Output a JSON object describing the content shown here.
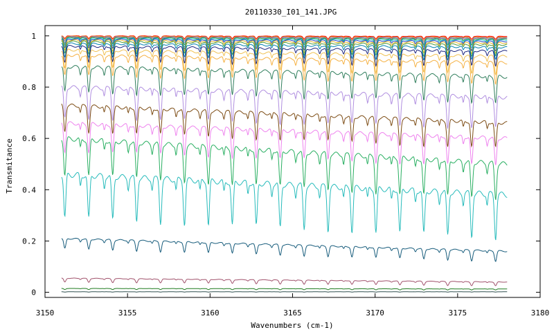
{
  "chart_data": {
    "type": "line",
    "title": "20110330_I01_141.JPG",
    "xlabel": "Wavenumbers (cm-1)",
    "ylabel": "Transmitance",
    "xlim": [
      3150,
      3180
    ],
    "ylim": [
      -0.02,
      1.04
    ],
    "x_ticks": [
      3150,
      3155,
      3160,
      3165,
      3170,
      3175,
      3180
    ],
    "y_ticks": [
      0,
      0.2,
      0.4,
      0.6,
      0.8,
      1
    ],
    "x_tick_labels": [
      "3150",
      "3155",
      "3160",
      "3165",
      "3170",
      "3175",
      "3180"
    ],
    "y_tick_labels": [
      "0",
      "0.2",
      "0.4",
      "0.6",
      "0.8",
      "1"
    ],
    "grid": false,
    "legend": "none",
    "x_range_of_data": [
      3151,
      3178
    ],
    "absorption_line_spacing": 1.45,
    "series": [
      {
        "color": "#ff0000",
        "baseline_start": 1.0,
        "baseline_end": 0.998,
        "depth": 0.01
      },
      {
        "color": "#ff7f0e",
        "baseline_start": 0.999,
        "baseline_end": 0.995,
        "depth": 0.012
      },
      {
        "color": "#888888",
        "baseline_start": 0.997,
        "baseline_end": 0.993,
        "depth": 0.015
      },
      {
        "color": "#9467bd",
        "baseline_start": 0.995,
        "baseline_end": 0.99,
        "depth": 0.02
      },
      {
        "color": "#2ca02c",
        "baseline_start": 0.993,
        "baseline_end": 0.987,
        "depth": 0.025
      },
      {
        "color": "#17becf",
        "baseline_start": 0.99,
        "baseline_end": 0.983,
        "depth": 0.03
      },
      {
        "color": "#1f3fbf",
        "baseline_start": 0.987,
        "baseline_end": 0.978,
        "depth": 0.035
      },
      {
        "color": "#e6b422",
        "baseline_start": 0.983,
        "baseline_end": 0.972,
        "depth": 0.04
      },
      {
        "color": "#4a9a3a",
        "baseline_start": 0.978,
        "baseline_end": 0.965,
        "depth": 0.045
      },
      {
        "color": "#0080b0",
        "baseline_start": 0.97,
        "baseline_end": 0.955,
        "depth": 0.05
      },
      {
        "color": "#1a237e",
        "baseline_start": 0.96,
        "baseline_end": 0.94,
        "depth": 0.06
      },
      {
        "color": "#f0c050",
        "baseline_start": 0.945,
        "baseline_end": 0.92,
        "depth": 0.07
      },
      {
        "color": "#f5b041",
        "baseline_start": 0.925,
        "baseline_end": 0.895,
        "depth": 0.08
      },
      {
        "color": "#2e7d5b",
        "baseline_start": 0.88,
        "baseline_end": 0.84,
        "depth": 0.1
      },
      {
        "color": "#b08ee0",
        "baseline_start": 0.8,
        "baseline_end": 0.76,
        "depth": 0.12
      },
      {
        "color": "#7b4a12",
        "baseline_start": 0.73,
        "baseline_end": 0.66,
        "depth": 0.1
      },
      {
        "color": "#ee82ee",
        "baseline_start": 0.66,
        "baseline_end": 0.6,
        "depth": 0.11
      },
      {
        "color": "#27ae60",
        "baseline_start": 0.6,
        "baseline_end": 0.5,
        "depth": 0.14
      },
      {
        "color": "#26bbbb",
        "baseline_start": 0.46,
        "baseline_end": 0.38,
        "depth": 0.17
      },
      {
        "color": "#145a7a",
        "baseline_start": 0.21,
        "baseline_end": 0.16,
        "depth": 0.04
      },
      {
        "color": "#a0506a",
        "baseline_start": 0.055,
        "baseline_end": 0.04,
        "depth": 0.015
      },
      {
        "color": "#1e7b1e",
        "baseline_start": 0.015,
        "baseline_end": 0.013,
        "depth": 0.004
      },
      {
        "color": "#2f4f4f",
        "baseline_start": 0.002,
        "baseline_end": 0.002,
        "depth": 0.001
      }
    ]
  }
}
